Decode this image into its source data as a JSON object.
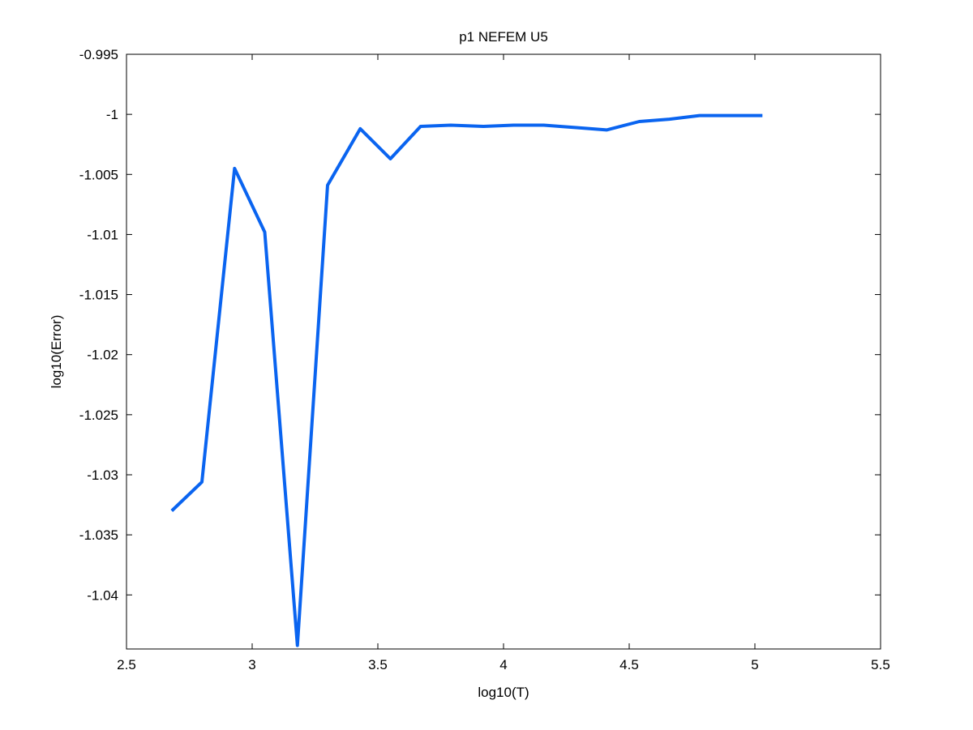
{
  "chart_data": {
    "type": "line",
    "title": "p1 NEFEM U5",
    "xlabel": "log10(T)",
    "ylabel": "log10(Error)",
    "xlim": [
      2.5,
      5.5
    ],
    "ylim": [
      -1.0445,
      -0.995
    ],
    "xticks": [
      2.5,
      3,
      3.5,
      4,
      4.5,
      5,
      5.5
    ],
    "xtick_labels": [
      "2.5",
      "3",
      "3.5",
      "4",
      "4.5",
      "5",
      "5.5"
    ],
    "yticks": [
      -1.04,
      -1.035,
      -1.03,
      -1.025,
      -1.02,
      -1.015,
      -1.01,
      -1.005,
      -1,
      -0.995
    ],
    "ytick_labels": [
      "-1.04",
      "-1.035",
      "-1.03",
      "-1.025",
      "-1.02",
      "-1.015",
      "-1.01",
      "-1.005",
      "-1",
      "-0.995"
    ],
    "grid": false,
    "color": "#0a64f0",
    "series": [
      {
        "x": [
          2.68,
          2.8,
          2.93,
          3.05,
          3.18,
          3.3,
          3.43,
          3.55,
          3.67,
          3.79,
          3.92,
          4.04,
          4.16,
          4.29,
          4.41,
          4.54,
          4.66,
          4.78,
          4.91,
          5.03
        ],
        "y": [
          -1.033,
          -1.0306,
          -1.0045,
          -1.0098,
          -1.0442,
          -1.0059,
          -1.0012,
          -1.0037,
          -1.001,
          -1.0009,
          -1.001,
          -1.0009,
          -1.0009,
          -1.0011,
          -1.0013,
          -1.0006,
          -1.0004,
          -1.0001,
          -1.0001,
          -1.0001
        ]
      }
    ]
  }
}
